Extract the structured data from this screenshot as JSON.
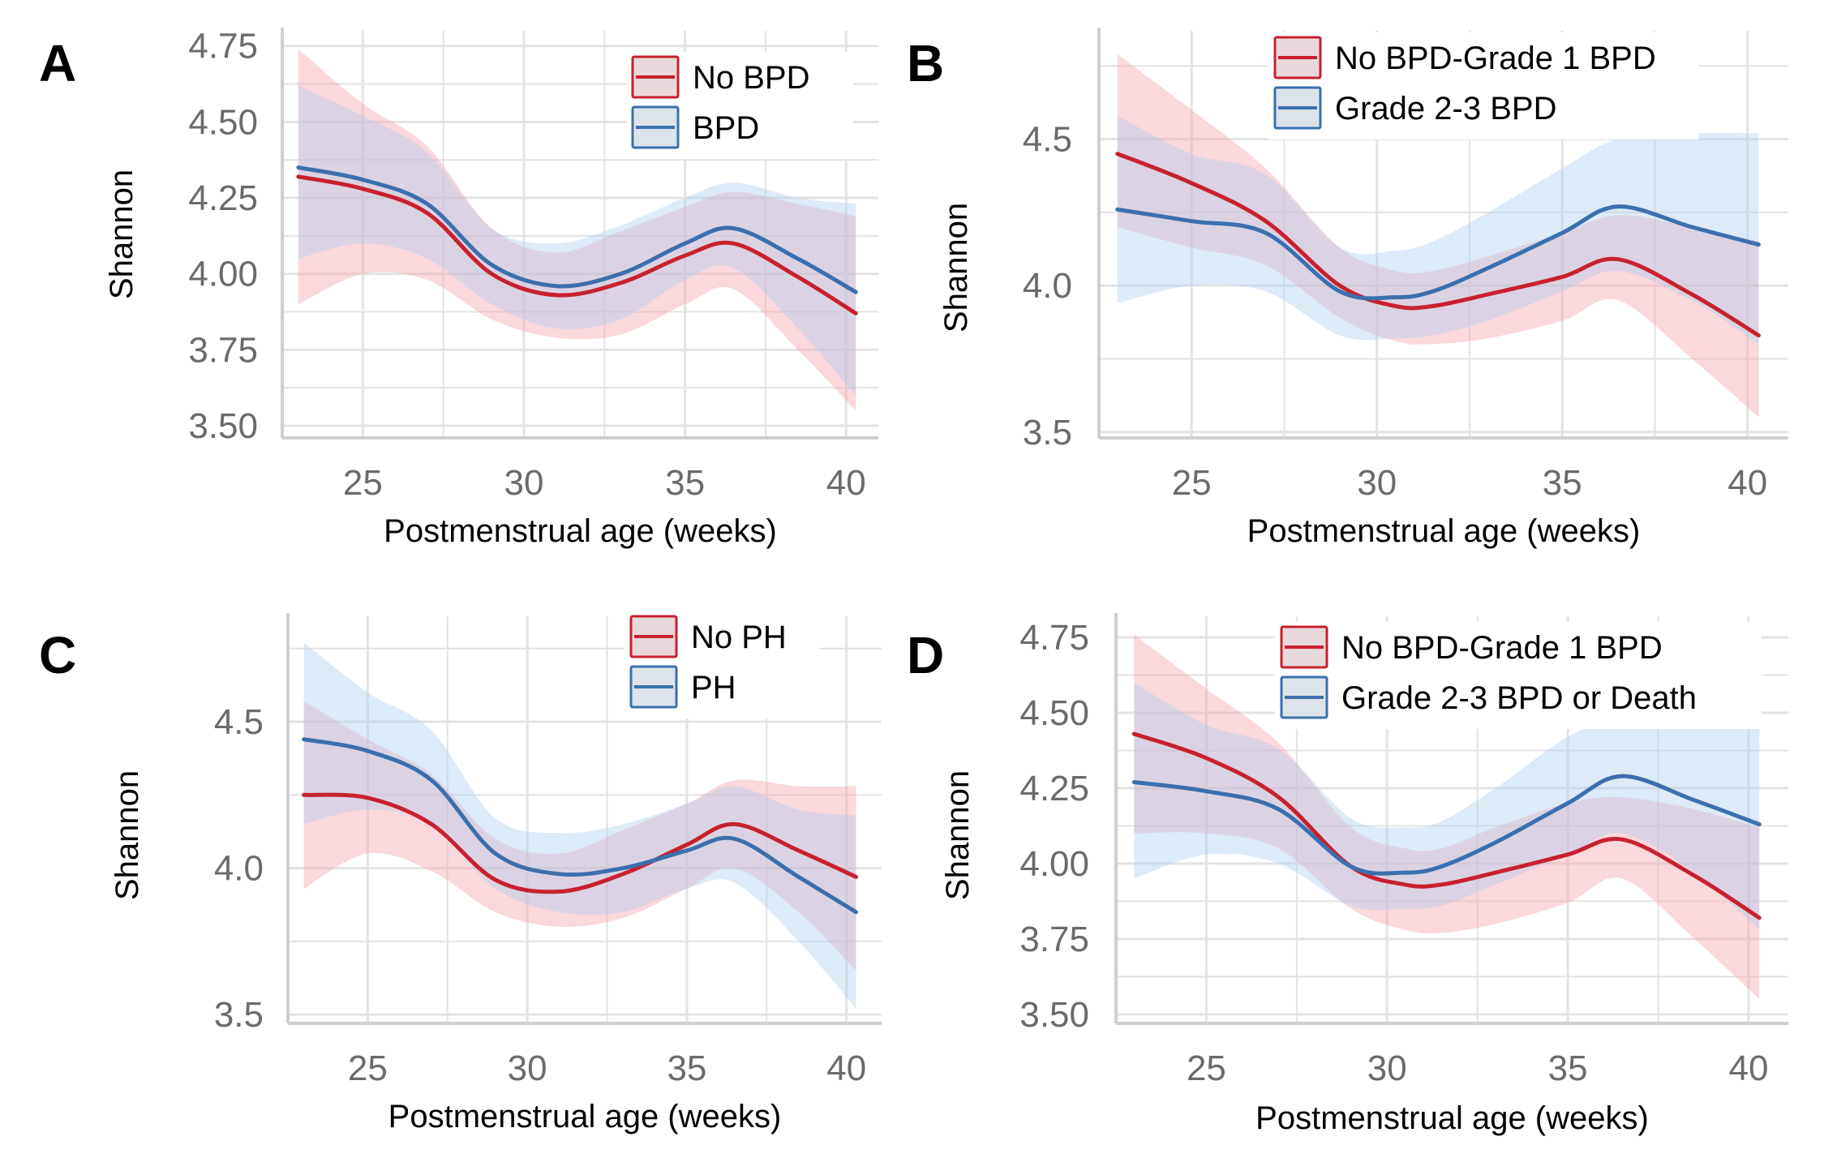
{
  "colors": {
    "red": "#c8202f",
    "blue": "#3b6fae",
    "red_band": "#f5a3ab",
    "blue_band": "#aecdec",
    "grid": "#e3e3e3",
    "axis": "#cfcfcf"
  },
  "chart_data": [
    {
      "type": "line",
      "panel": "A",
      "xlabel": "Postmenstrual age (weeks)",
      "ylabel": "Shannon",
      "xlim": [
        22.5,
        41
      ],
      "ylim": [
        3.46,
        4.8
      ],
      "xticks": [
        25,
        30,
        35,
        40
      ],
      "xtick_labels": [
        "25",
        "30",
        "35",
        "40"
      ],
      "yticks": [
        3.5,
        3.75,
        4.0,
        4.25,
        4.5,
        4.75
      ],
      "ytick_labels": [
        "3.50",
        "3.75",
        "4.00",
        "4.25",
        "4.50",
        "4.75"
      ],
      "grid": true,
      "legend_position": "top-right",
      "x": [
        23,
        25,
        27,
        29,
        31,
        33,
        35,
        36.5,
        38.5,
        40.3
      ],
      "series": [
        {
          "name": "No BPD",
          "color": "red",
          "values": [
            4.32,
            4.28,
            4.2,
            4.0,
            3.93,
            3.97,
            4.06,
            4.1,
            3.99,
            3.87
          ],
          "lower": [
            3.9,
            4.0,
            3.98,
            3.85,
            3.79,
            3.8,
            3.9,
            3.95,
            3.75,
            3.55
          ],
          "upper": [
            4.74,
            4.56,
            4.42,
            4.15,
            4.07,
            4.14,
            4.22,
            4.27,
            4.23,
            4.19
          ]
        },
        {
          "name": "BPD",
          "color": "blue",
          "values": [
            4.35,
            4.31,
            4.23,
            4.03,
            3.96,
            4.0,
            4.1,
            4.15,
            4.05,
            3.94
          ],
          "lower": [
            4.05,
            4.1,
            4.05,
            3.9,
            3.82,
            3.85,
            3.98,
            4.02,
            3.82,
            3.6
          ],
          "upper": [
            4.62,
            4.52,
            4.4,
            4.15,
            4.1,
            4.16,
            4.25,
            4.3,
            4.25,
            4.23
          ]
        }
      ]
    },
    {
      "type": "line",
      "panel": "B",
      "xlabel": "Postmenstrual age (weeks)",
      "ylabel": "Shannon",
      "xlim": [
        22.5,
        41.1
      ],
      "ylim": [
        3.48,
        4.87
      ],
      "xticks": [
        25,
        30,
        35,
        40
      ],
      "xtick_labels": [
        "25",
        "30",
        "35",
        "40"
      ],
      "yticks": [
        3.5,
        4.0,
        4.5
      ],
      "ytick_labels": [
        "3.5",
        "4.0",
        "4.5"
      ],
      "grid": true,
      "legend_position": "top",
      "x": [
        23,
        25,
        27,
        29,
        30.5,
        31.5,
        33,
        35,
        36.5,
        38.5,
        40.3
      ],
      "series": [
        {
          "name": "No BPD-Grade 1 BPD",
          "color": "red",
          "values": [
            4.45,
            4.35,
            4.22,
            4.0,
            3.93,
            3.93,
            3.97,
            4.03,
            4.09,
            3.97,
            3.83
          ],
          "lower": [
            4.2,
            4.13,
            4.07,
            3.89,
            3.81,
            3.8,
            3.82,
            3.88,
            3.95,
            3.75,
            3.55
          ],
          "upper": [
            4.79,
            4.6,
            4.4,
            4.13,
            4.05,
            4.05,
            4.1,
            4.18,
            4.24,
            4.2,
            4.15
          ]
        },
        {
          "name": "Grade 2-3 BPD",
          "color": "blue",
          "values": [
            4.26,
            4.22,
            4.18,
            3.98,
            3.96,
            3.98,
            4.06,
            4.18,
            4.27,
            4.2,
            4.14
          ],
          "lower": [
            3.94,
            4.0,
            3.98,
            3.83,
            3.82,
            3.83,
            3.88,
            3.98,
            4.05,
            3.95,
            3.8
          ],
          "upper": [
            4.58,
            4.45,
            4.38,
            4.13,
            4.12,
            4.15,
            4.25,
            4.4,
            4.5,
            4.52,
            4.52
          ]
        }
      ]
    },
    {
      "type": "line",
      "panel": "C",
      "xlabel": "Postmenstrual age (weeks)",
      "ylabel": "Shannon",
      "xlim": [
        22.5,
        41.1
      ],
      "ylim": [
        3.47,
        4.86
      ],
      "xticks": [
        25,
        30,
        35,
        40
      ],
      "xtick_labels": [
        "25",
        "30",
        "35",
        "40"
      ],
      "yticks": [
        3.5,
        4.0,
        4.5
      ],
      "ytick_labels": [
        "3.5",
        "4.0",
        "4.5"
      ],
      "grid": true,
      "legend_position": "top-right",
      "x": [
        23,
        25,
        27,
        29,
        31,
        33,
        35,
        36.5,
        38.5,
        40.3
      ],
      "series": [
        {
          "name": "No PH",
          "color": "red",
          "values": [
            4.25,
            4.24,
            4.15,
            3.96,
            3.92,
            3.98,
            4.08,
            4.15,
            4.06,
            3.97
          ],
          "lower": [
            3.93,
            4.05,
            3.99,
            3.85,
            3.8,
            3.83,
            3.93,
            4.0,
            3.85,
            3.65
          ],
          "upper": [
            4.57,
            4.44,
            4.32,
            4.1,
            4.05,
            4.13,
            4.22,
            4.3,
            4.28,
            4.28
          ]
        },
        {
          "name": "PH",
          "color": "blue",
          "values": [
            4.44,
            4.4,
            4.3,
            4.05,
            3.98,
            4.0,
            4.06,
            4.1,
            3.97,
            3.85
          ],
          "lower": [
            4.15,
            4.2,
            4.15,
            3.93,
            3.85,
            3.85,
            3.93,
            3.95,
            3.75,
            3.52
          ],
          "upper": [
            4.77,
            4.6,
            4.47,
            4.17,
            4.12,
            4.15,
            4.22,
            4.28,
            4.2,
            4.18
          ]
        }
      ]
    },
    {
      "type": "line",
      "panel": "D",
      "xlabel": "Postmenstrual age (weeks)",
      "ylabel": "Shannon",
      "xlim": [
        22.5,
        41.1
      ],
      "ylim": [
        3.47,
        4.82
      ],
      "xticks": [
        25,
        30,
        35,
        40
      ],
      "xtick_labels": [
        "25",
        "30",
        "35",
        "40"
      ],
      "yticks": [
        3.5,
        3.75,
        4.0,
        4.25,
        4.5,
        4.75
      ],
      "ytick_labels": [
        "3.50",
        "3.75",
        "4.00",
        "4.25",
        "4.50",
        "4.75"
      ],
      "grid": true,
      "legend_position": "top",
      "x": [
        23,
        25,
        27,
        29,
        30.5,
        31.5,
        33,
        35,
        36.5,
        38.5,
        40.3
      ],
      "series": [
        {
          "name": "No BPD-Grade 1 BPD",
          "color": "red",
          "values": [
            4.43,
            4.35,
            4.22,
            3.99,
            3.93,
            3.93,
            3.97,
            4.03,
            4.08,
            3.96,
            3.82
          ],
          "lower": [
            4.1,
            4.1,
            4.05,
            3.85,
            3.78,
            3.77,
            3.8,
            3.87,
            3.95,
            3.75,
            3.55
          ],
          "upper": [
            4.76,
            4.58,
            4.4,
            4.12,
            4.05,
            4.05,
            4.12,
            4.2,
            4.22,
            4.18,
            4.12
          ]
        },
        {
          "name": "Grade 2-3 BPD or Death",
          "color": "blue",
          "values": [
            4.27,
            4.24,
            4.18,
            3.99,
            3.97,
            3.99,
            4.07,
            4.2,
            4.29,
            4.21,
            4.13
          ],
          "lower": [
            3.95,
            4.03,
            4.0,
            3.86,
            3.85,
            3.86,
            3.93,
            4.03,
            4.1,
            3.97,
            3.78
          ],
          "upper": [
            4.6,
            4.46,
            4.38,
            4.15,
            4.12,
            4.14,
            4.25,
            4.42,
            4.48,
            4.48,
            4.48
          ]
        }
      ]
    }
  ]
}
